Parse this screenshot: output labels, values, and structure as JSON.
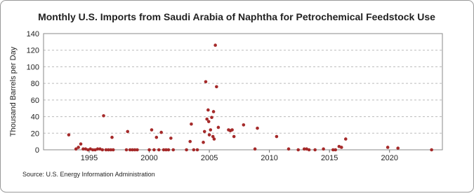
{
  "chart_data": {
    "type": "scatter",
    "title": "Monthly U.S. Imports from Saudi Arabia of Naphtha for Petrochemical Feedstock Use",
    "y_label": "Thousand Barrels per Day",
    "source": "Source: U.S. Energy Information Administration",
    "color": "#a52a2a",
    "grid": true,
    "xlim": [
      1991.2,
      2024.4
    ],
    "xticks": [
      1995,
      2000,
      2005,
      2010,
      2015,
      2020
    ],
    "ylim": [
      0,
      140
    ],
    "yticks": [
      0,
      20,
      40,
      60,
      80,
      100,
      120,
      140
    ],
    "x": [
      1993.3,
      1993.9,
      1994.1,
      1994.3,
      1994.5,
      1994.7,
      1994.9,
      1995.1,
      1995.3,
      1995.5,
      1995.7,
      1995.9,
      1996.1,
      1996.2,
      1996.4,
      1996.6,
      1996.8,
      1996.9,
      1997.0,
      1998.1,
      1998.2,
      1998.4,
      1998.6,
      1998.8,
      1999.0,
      2000.0,
      2000.2,
      2000.4,
      2000.6,
      2000.8,
      2001.0,
      2001.2,
      2001.4,
      2001.6,
      2001.8,
      2002.0,
      2003.1,
      2003.4,
      2003.5,
      2003.7,
      2004.0,
      2004.5,
      2004.6,
      2004.7,
      2004.8,
      2004.9,
      2004.95,
      2005.0,
      2005.1,
      2005.2,
      2005.3,
      2005.35,
      2005.4,
      2005.5,
      2005.6,
      2005.75,
      2006.6,
      2006.75,
      2006.9,
      2007.05,
      2007.85,
      2008.8,
      2009.0,
      2010.6,
      2011.6,
      2012.4,
      2012.9,
      2013.1,
      2013.3,
      2013.8,
      2014.5,
      2015.3,
      2015.5,
      2015.8,
      2016.0,
      2016.35,
      2019.85,
      2020.7,
      2023.5
    ],
    "values": [
      18,
      1,
      3,
      7,
      1,
      1,
      0,
      1,
      0,
      0,
      1,
      1,
      0,
      41,
      0,
      0,
      0,
      15,
      0,
      0,
      22,
      0,
      0,
      0,
      0,
      0,
      24,
      0,
      15,
      0,
      21,
      0,
      0,
      0,
      14,
      0,
      0,
      10,
      31,
      0,
      0,
      9,
      22,
      82,
      37,
      48,
      34,
      18,
      24,
      39,
      16,
      46,
      13,
      126,
      76,
      27,
      24,
      23,
      24,
      16,
      30,
      1,
      26,
      16,
      1,
      0,
      1,
      1,
      0,
      0,
      1,
      0,
      0,
      4,
      3,
      13,
      3,
      2,
      0
    ]
  }
}
